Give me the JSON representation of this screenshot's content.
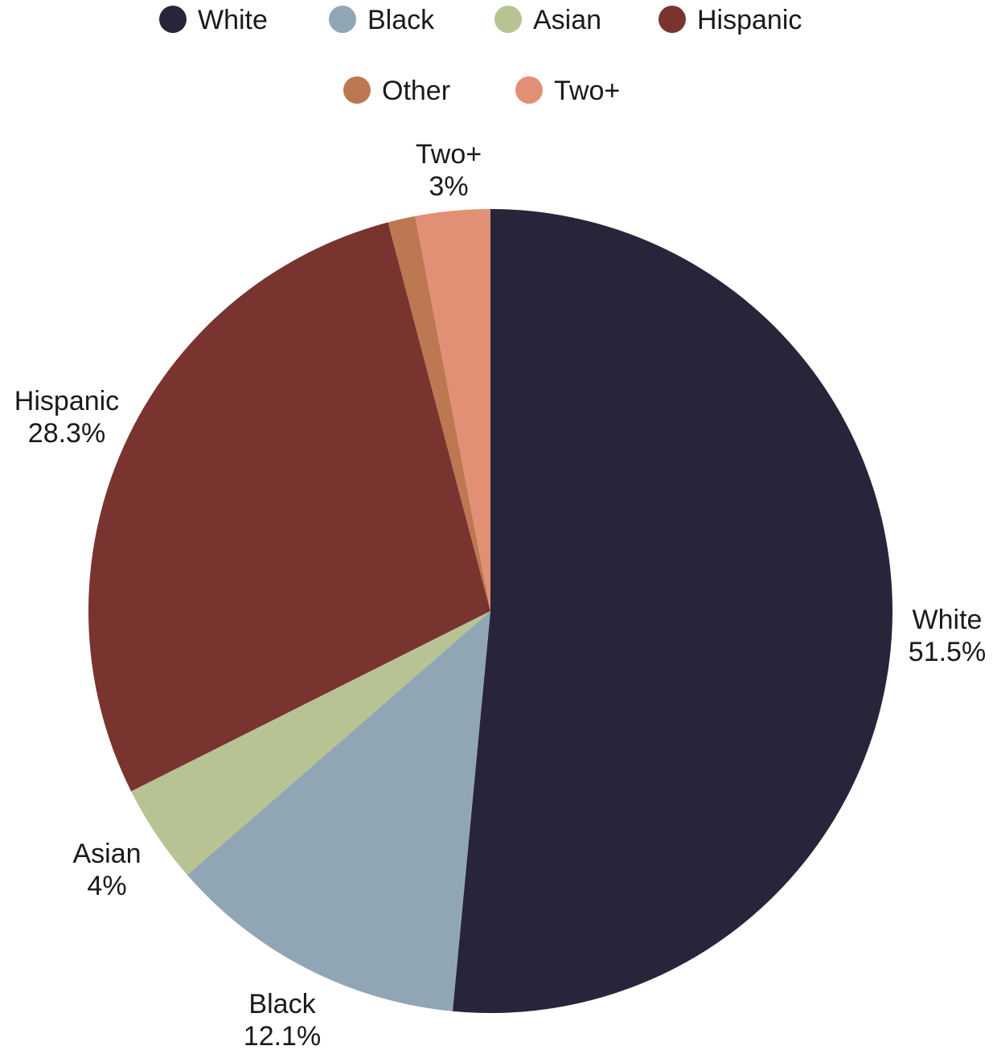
{
  "chart_data": {
    "type": "pie",
    "unit": "%",
    "slices": [
      {
        "name": "White",
        "value": 51.5,
        "label": "51.5%",
        "color": "#28243a"
      },
      {
        "name": "Black",
        "value": 12.1,
        "label": "12.1%",
        "color": "#90a6b4"
      },
      {
        "name": "Asian",
        "value": 4,
        "label": "4%",
        "color": "#b8c394"
      },
      {
        "name": "Hispanic",
        "value": 28.3,
        "label": "28.3%",
        "color": "#7a342f"
      },
      {
        "name": "Other",
        "value": 1.1,
        "label": "",
        "color": "#bd7752"
      },
      {
        "name": "Two+",
        "value": 3,
        "label": "3%",
        "color": "#e29075"
      }
    ],
    "legend": {
      "position": "top-center",
      "items": [
        "White",
        "Black",
        "Asian",
        "Hispanic",
        "Other",
        "Two+"
      ]
    }
  }
}
